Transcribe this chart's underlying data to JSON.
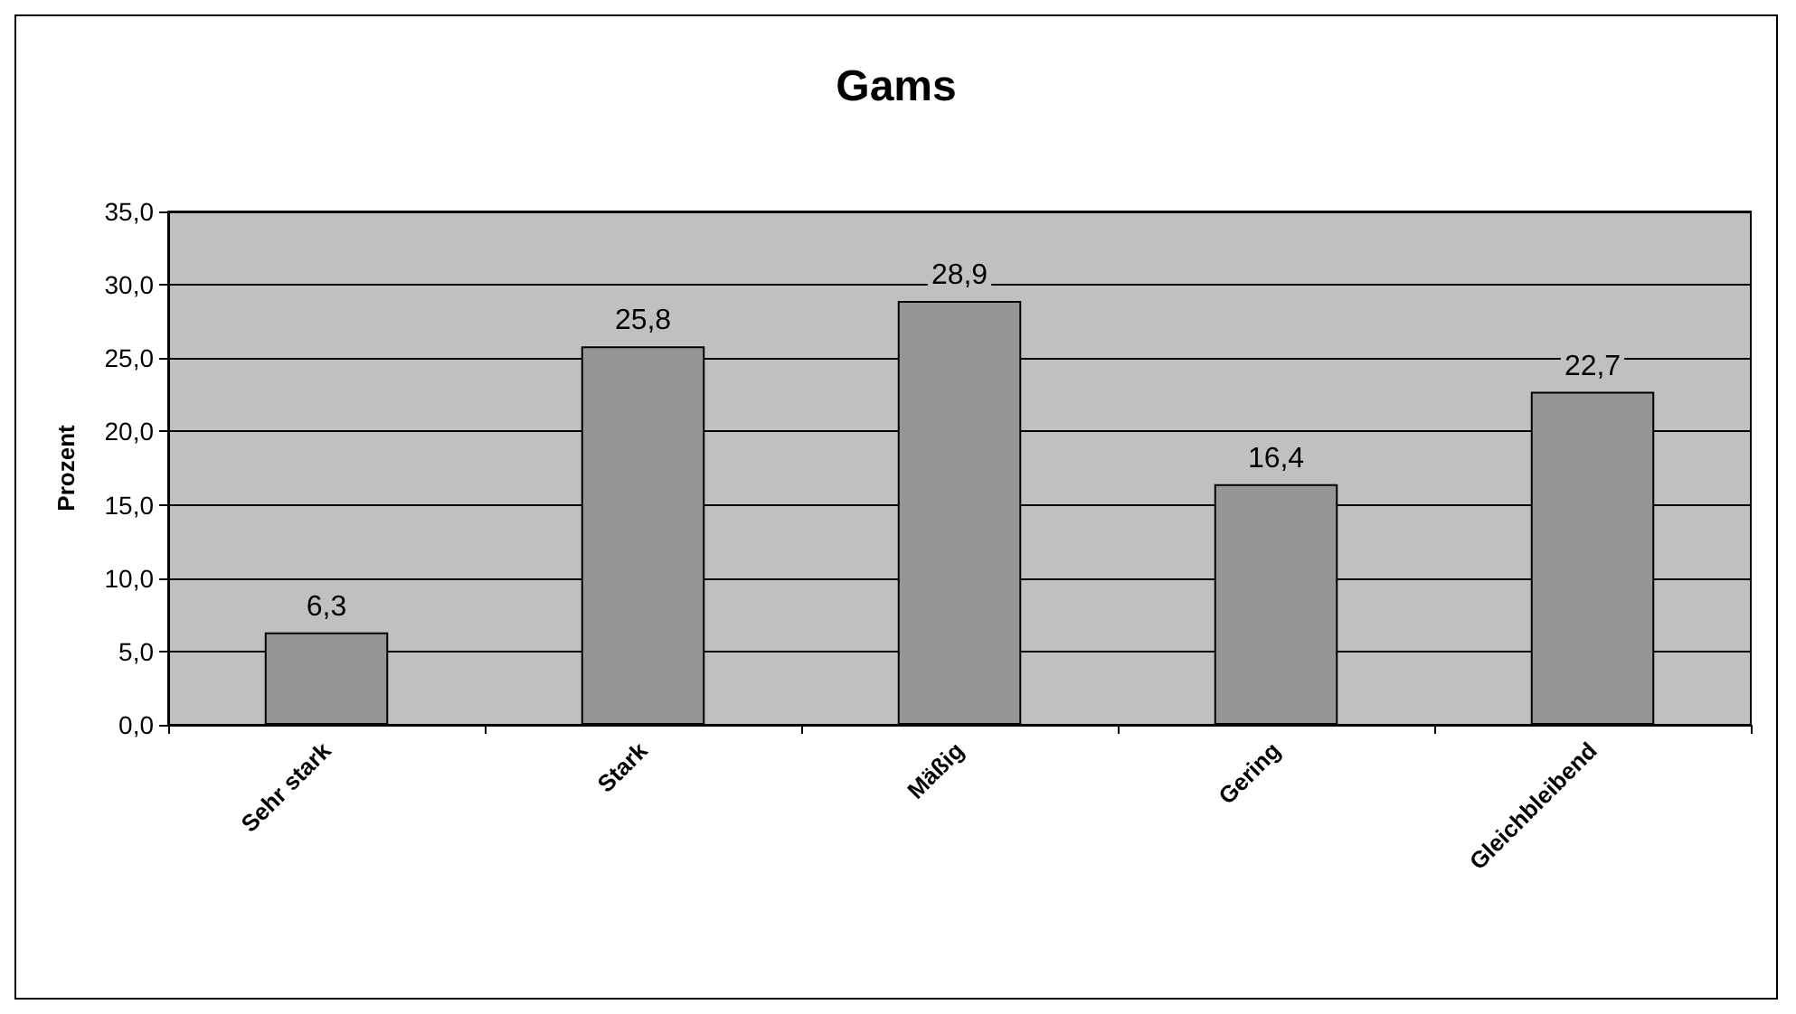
{
  "chart_data": {
    "type": "bar",
    "title": "Gams",
    "ylabel": "Prozent",
    "categories": [
      "Sehr stark",
      "Stark",
      "Mäßig",
      "Gering",
      "Gleichbleibend"
    ],
    "values": [
      6.3,
      25.8,
      28.9,
      16.4,
      22.7
    ],
    "value_labels": [
      "6,3",
      "25,8",
      "28,9",
      "16,4",
      "22,7"
    ],
    "color": "#969696",
    "ylim": [
      0,
      35
    ],
    "yticks": [
      {
        "value": 0,
        "label": "0,0"
      },
      {
        "value": 5,
        "label": "5,0"
      },
      {
        "value": 10,
        "label": "10,0"
      },
      {
        "value": 15,
        "label": "15,0"
      },
      {
        "value": 20,
        "label": "20,0"
      },
      {
        "value": 25,
        "label": "25,0"
      },
      {
        "value": 30,
        "label": "30,0"
      },
      {
        "value": 35,
        "label": "35,0"
      }
    ],
    "grid": true
  }
}
